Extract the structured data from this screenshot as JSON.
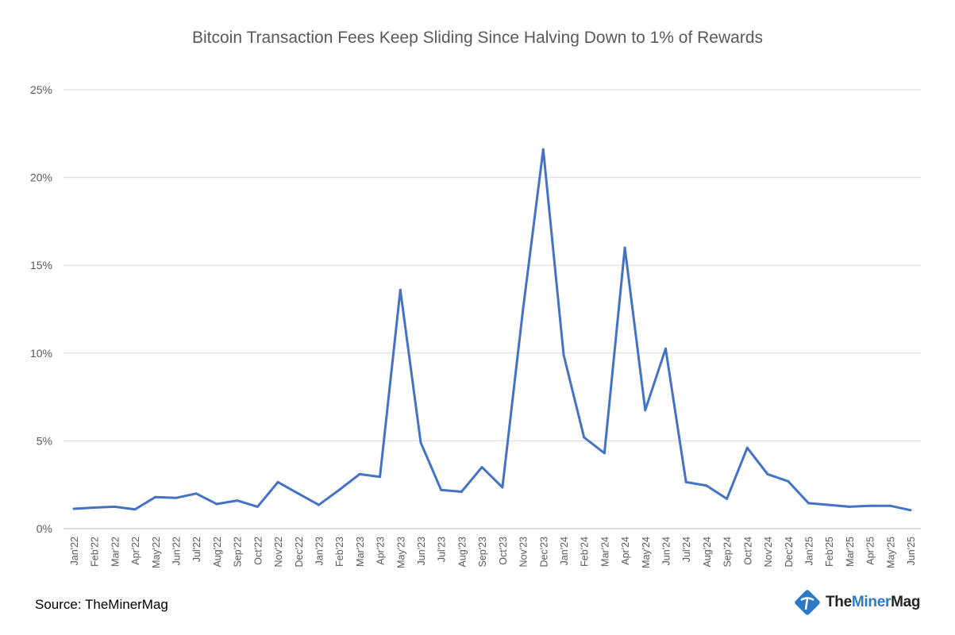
{
  "chart_data": {
    "type": "line",
    "title": "Bitcoin Transaction Fees Keep Sliding Since Halving Down to 1% of Rewards",
    "xlabel": "",
    "ylabel": "",
    "ylim": [
      0,
      25
    ],
    "yticks": [
      0,
      5,
      10,
      15,
      20,
      25
    ],
    "ytick_labels": [
      "0%",
      "5%",
      "10%",
      "15%",
      "20%",
      "25%"
    ],
    "grid": "horizontal",
    "line_color": "#4472C4",
    "categories": [
      "Jan'22",
      "Feb'22",
      "Mar'22",
      "Apr'22",
      "May'22",
      "Jun'22",
      "Jul'22",
      "Aug'22",
      "Sep'22",
      "Oct'22",
      "Nov'22",
      "Dec'22",
      "Jan'23",
      "Feb'23",
      "Mar'23",
      "Apr'23",
      "May'23",
      "Jun'23",
      "Jul'23",
      "Aug'23",
      "Sep'23",
      "Oct'23",
      "Nov'23",
      "Dec'23",
      "Jan'24",
      "Feb'24",
      "Mar'24",
      "Apr'24",
      "May'24",
      "Jun'24",
      "Jul'24",
      "Aug'24",
      "Sep'24",
      "Oct'24",
      "Nov'24",
      "Dec'24",
      "Jan'25",
      "Feb'25",
      "Mar'25",
      "Apr'25",
      "May'25",
      "Jun'25"
    ],
    "values": [
      1.13,
      1.2,
      1.25,
      1.1,
      1.8,
      1.75,
      2.0,
      1.4,
      1.6,
      1.25,
      2.65,
      2.0,
      1.35,
      2.2,
      3.1,
      2.95,
      13.6,
      4.9,
      2.2,
      2.1,
      3.5,
      2.35,
      12.4,
      21.6,
      9.9,
      5.2,
      4.3,
      16.0,
      6.75,
      10.25,
      2.65,
      2.45,
      1.7,
      4.6,
      3.1,
      2.7,
      1.45,
      1.35,
      1.25,
      1.3,
      1.3,
      1.05
    ]
  },
  "footer": {
    "source": "Source: TheMinerMag",
    "logo_text": "TheMinerMag",
    "logo_part1": "The",
    "logo_part2": "Miner",
    "logo_part3": "Mag"
  }
}
